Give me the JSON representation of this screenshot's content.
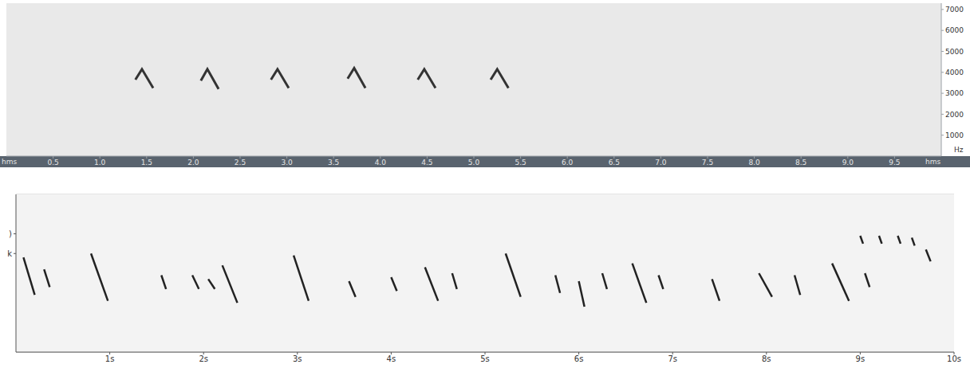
{
  "chart_data": [
    {
      "type": "line",
      "x_label": "hms",
      "y_label": "Hz",
      "color": "#333333",
      "grid": false,
      "xlim": [
        0,
        10
      ],
      "xticks": [
        0.5,
        {
          "value": 1,
          "label": "1.0"
        },
        1.5,
        {
          "value": 2,
          "label": "2.0"
        },
        2.5,
        {
          "value": 3,
          "label": "3.0"
        },
        3.5,
        {
          "value": 4,
          "label": "4.0"
        },
        4.5,
        {
          "value": 5,
          "label": "5.0"
        },
        5.5,
        {
          "value": 6,
          "label": "6.0"
        },
        6.5,
        {
          "value": 7,
          "label": "7.0"
        },
        7.5,
        {
          "value": 8,
          "label": "8.0"
        },
        8.5,
        {
          "value": 9,
          "label": "9.0"
        },
        9.5
      ],
      "ylim": [
        0,
        7300
      ],
      "yticks": [
        1000,
        2000,
        3000,
        4000,
        5000,
        6000,
        7000
      ],
      "series": [
        {
          "x": [
            1.38,
            1.45,
            1.57
          ],
          "values": [
            3650,
            4150,
            3250
          ]
        },
        {
          "x": [
            2.08,
            2.15,
            2.27
          ],
          "values": [
            3600,
            4150,
            3200
          ]
        },
        {
          "x": [
            2.83,
            2.9,
            3.02
          ],
          "values": [
            3650,
            4150,
            3250
          ]
        },
        {
          "x": [
            3.65,
            3.72,
            3.84
          ],
          "values": [
            3700,
            4200,
            3250
          ]
        },
        {
          "x": [
            4.4,
            4.47,
            4.59
          ],
          "values": [
            3650,
            4150,
            3250
          ]
        },
        {
          "x": [
            5.18,
            5.25,
            5.37
          ],
          "values": [
            3650,
            4150,
            3250
          ]
        }
      ]
    },
    {
      "type": "line",
      "color": "#222222",
      "grid": true,
      "xlim": [
        0,
        10
      ],
      "xticks": [
        {
          "value": 1,
          "label": "1s"
        },
        {
          "value": 2,
          "label": "2s"
        },
        {
          "value": 3,
          "label": "3s"
        },
        {
          "value": 4,
          "label": "4s"
        },
        {
          "value": 5,
          "label": "5s"
        },
        {
          "value": 6,
          "label": "6s"
        },
        {
          "value": 7,
          "label": "7s"
        },
        {
          "value": 8,
          "label": "8s"
        },
        {
          "value": 9,
          "label": "9s"
        },
        {
          "value": 10,
          "label": "10s"
        }
      ],
      "ylim": [
        0,
        8
      ],
      "yticks": [
        {
          "value": 5,
          "label": "k"
        },
        {
          "value": 6,
          "label": ")"
        }
      ],
      "series": [
        {
          "x": [
            0.08,
            0.2
          ],
          "values": [
            4.8,
            2.9
          ]
        },
        {
          "x": [
            0.8,
            0.98
          ],
          "values": [
            5.0,
            2.6
          ]
        },
        {
          "x": [
            2.2,
            2.36
          ],
          "values": [
            4.4,
            2.5
          ]
        },
        {
          "x": [
            2.96,
            3.12
          ],
          "values": [
            4.9,
            2.6
          ]
        },
        {
          "x": [
            4.36,
            4.5
          ],
          "values": [
            4.3,
            2.6
          ]
        },
        {
          "x": [
            5.22,
            5.38
          ],
          "values": [
            5.0,
            2.8
          ]
        },
        {
          "x": [
            6.0,
            6.06
          ],
          "values": [
            3.6,
            2.3
          ]
        },
        {
          "x": [
            6.57,
            6.72
          ],
          "values": [
            4.5,
            2.5
          ]
        },
        {
          "x": [
            7.42,
            7.5
          ],
          "values": [
            3.7,
            2.6
          ]
        },
        {
          "x": [
            7.92,
            8.06
          ],
          "values": [
            4.0,
            2.8
          ]
        },
        {
          "x": [
            8.7,
            8.88
          ],
          "values": [
            4.5,
            2.6
          ]
        },
        {
          "x": [
            0.3,
            0.36
          ],
          "values": [
            4.2,
            3.3
          ]
        },
        {
          "x": [
            1.55,
            1.6
          ],
          "values": [
            3.9,
            3.2
          ]
        },
        {
          "x": [
            1.88,
            1.95
          ],
          "values": [
            3.9,
            3.2
          ]
        },
        {
          "x": [
            2.05,
            2.12
          ],
          "values": [
            3.7,
            3.2
          ]
        },
        {
          "x": [
            3.55,
            3.62
          ],
          "values": [
            3.6,
            2.8
          ]
        },
        {
          "x": [
            4.0,
            4.06
          ],
          "values": [
            3.8,
            3.1
          ]
        },
        {
          "x": [
            4.65,
            4.7
          ],
          "values": [
            4.0,
            3.2
          ]
        },
        {
          "x": [
            5.75,
            5.8
          ],
          "values": [
            3.9,
            3.0
          ]
        },
        {
          "x": [
            6.25,
            6.3
          ],
          "values": [
            4.0,
            3.2
          ]
        },
        {
          "x": [
            6.85,
            6.9
          ],
          "values": [
            3.9,
            3.2
          ]
        },
        {
          "x": [
            8.3,
            8.36
          ],
          "values": [
            3.9,
            2.9
          ]
        },
        {
          "x": [
            9.05,
            9.1
          ],
          "values": [
            4.0,
            3.3
          ]
        },
        {
          "x": [
            9.0,
            9.03
          ],
          "values": [
            5.9,
            5.5
          ]
        },
        {
          "x": [
            9.2,
            9.23
          ],
          "values": [
            5.9,
            5.5
          ]
        },
        {
          "x": [
            9.4,
            9.43
          ],
          "values": [
            5.9,
            5.5
          ]
        },
        {
          "x": [
            9.55,
            9.58
          ],
          "values": [
            5.8,
            5.4
          ]
        },
        {
          "x": [
            9.7,
            9.75
          ],
          "values": [
            5.2,
            4.6
          ]
        }
      ]
    }
  ]
}
